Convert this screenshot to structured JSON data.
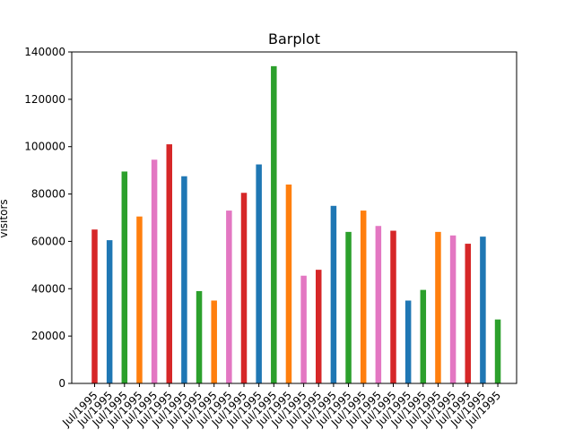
{
  "chart_data": {
    "type": "bar",
    "title": "Barplot",
    "xlabel": "",
    "ylabel": "visitors",
    "ylim": [
      0,
      140000
    ],
    "yticks": [
      0,
      20000,
      40000,
      60000,
      80000,
      100000,
      120000,
      140000
    ],
    "yticklabels": [
      "0",
      "20000",
      "40000",
      "60000",
      "80000",
      "100000",
      "120000",
      "140000"
    ],
    "grid": false,
    "categories": [
      "Jul/1995",
      "Jul/1995",
      "Jul/1995",
      "Jul/1995",
      "Jul/1995",
      "Jul/1995",
      "Jul/1995",
      "Jul/1995",
      "Jul/1995",
      "Jul/1995",
      "Jul/1995",
      "Jul/1995",
      "Jul/1995",
      "Jul/1995",
      "Jul/1995",
      "Jul/1995",
      "Jul/1995",
      "Jul/1995",
      "Jul/1995",
      "Jul/1995",
      "Jul/1995",
      "Jul/1995",
      "Jul/1995",
      "Jul/1995",
      "Jul/1995",
      "Jul/1995",
      "Jul/1995",
      "Jul/1995"
    ],
    "values": [
      65000,
      60500,
      89500,
      70500,
      94500,
      101000,
      87500,
      39000,
      35000,
      73000,
      80500,
      92500,
      134000,
      84000,
      45500,
      48000,
      75000,
      64000,
      73000,
      66500,
      64500,
      35000,
      39500,
      64000,
      62500,
      59000,
      62000,
      27000
    ],
    "colors": [
      "#d62728",
      "#1f77b4",
      "#2ca02c",
      "#ff7f0e",
      "#e377c2",
      "#d62728",
      "#1f77b4",
      "#2ca02c",
      "#ff7f0e",
      "#e377c2",
      "#d62728",
      "#1f77b4",
      "#2ca02c",
      "#ff7f0e",
      "#e377c2",
      "#d62728",
      "#1f77b4",
      "#2ca02c",
      "#ff7f0e",
      "#e377c2",
      "#d62728",
      "#1f77b4",
      "#2ca02c",
      "#ff7f0e",
      "#e377c2",
      "#d62728",
      "#1f77b4",
      "#2ca02c"
    ]
  }
}
